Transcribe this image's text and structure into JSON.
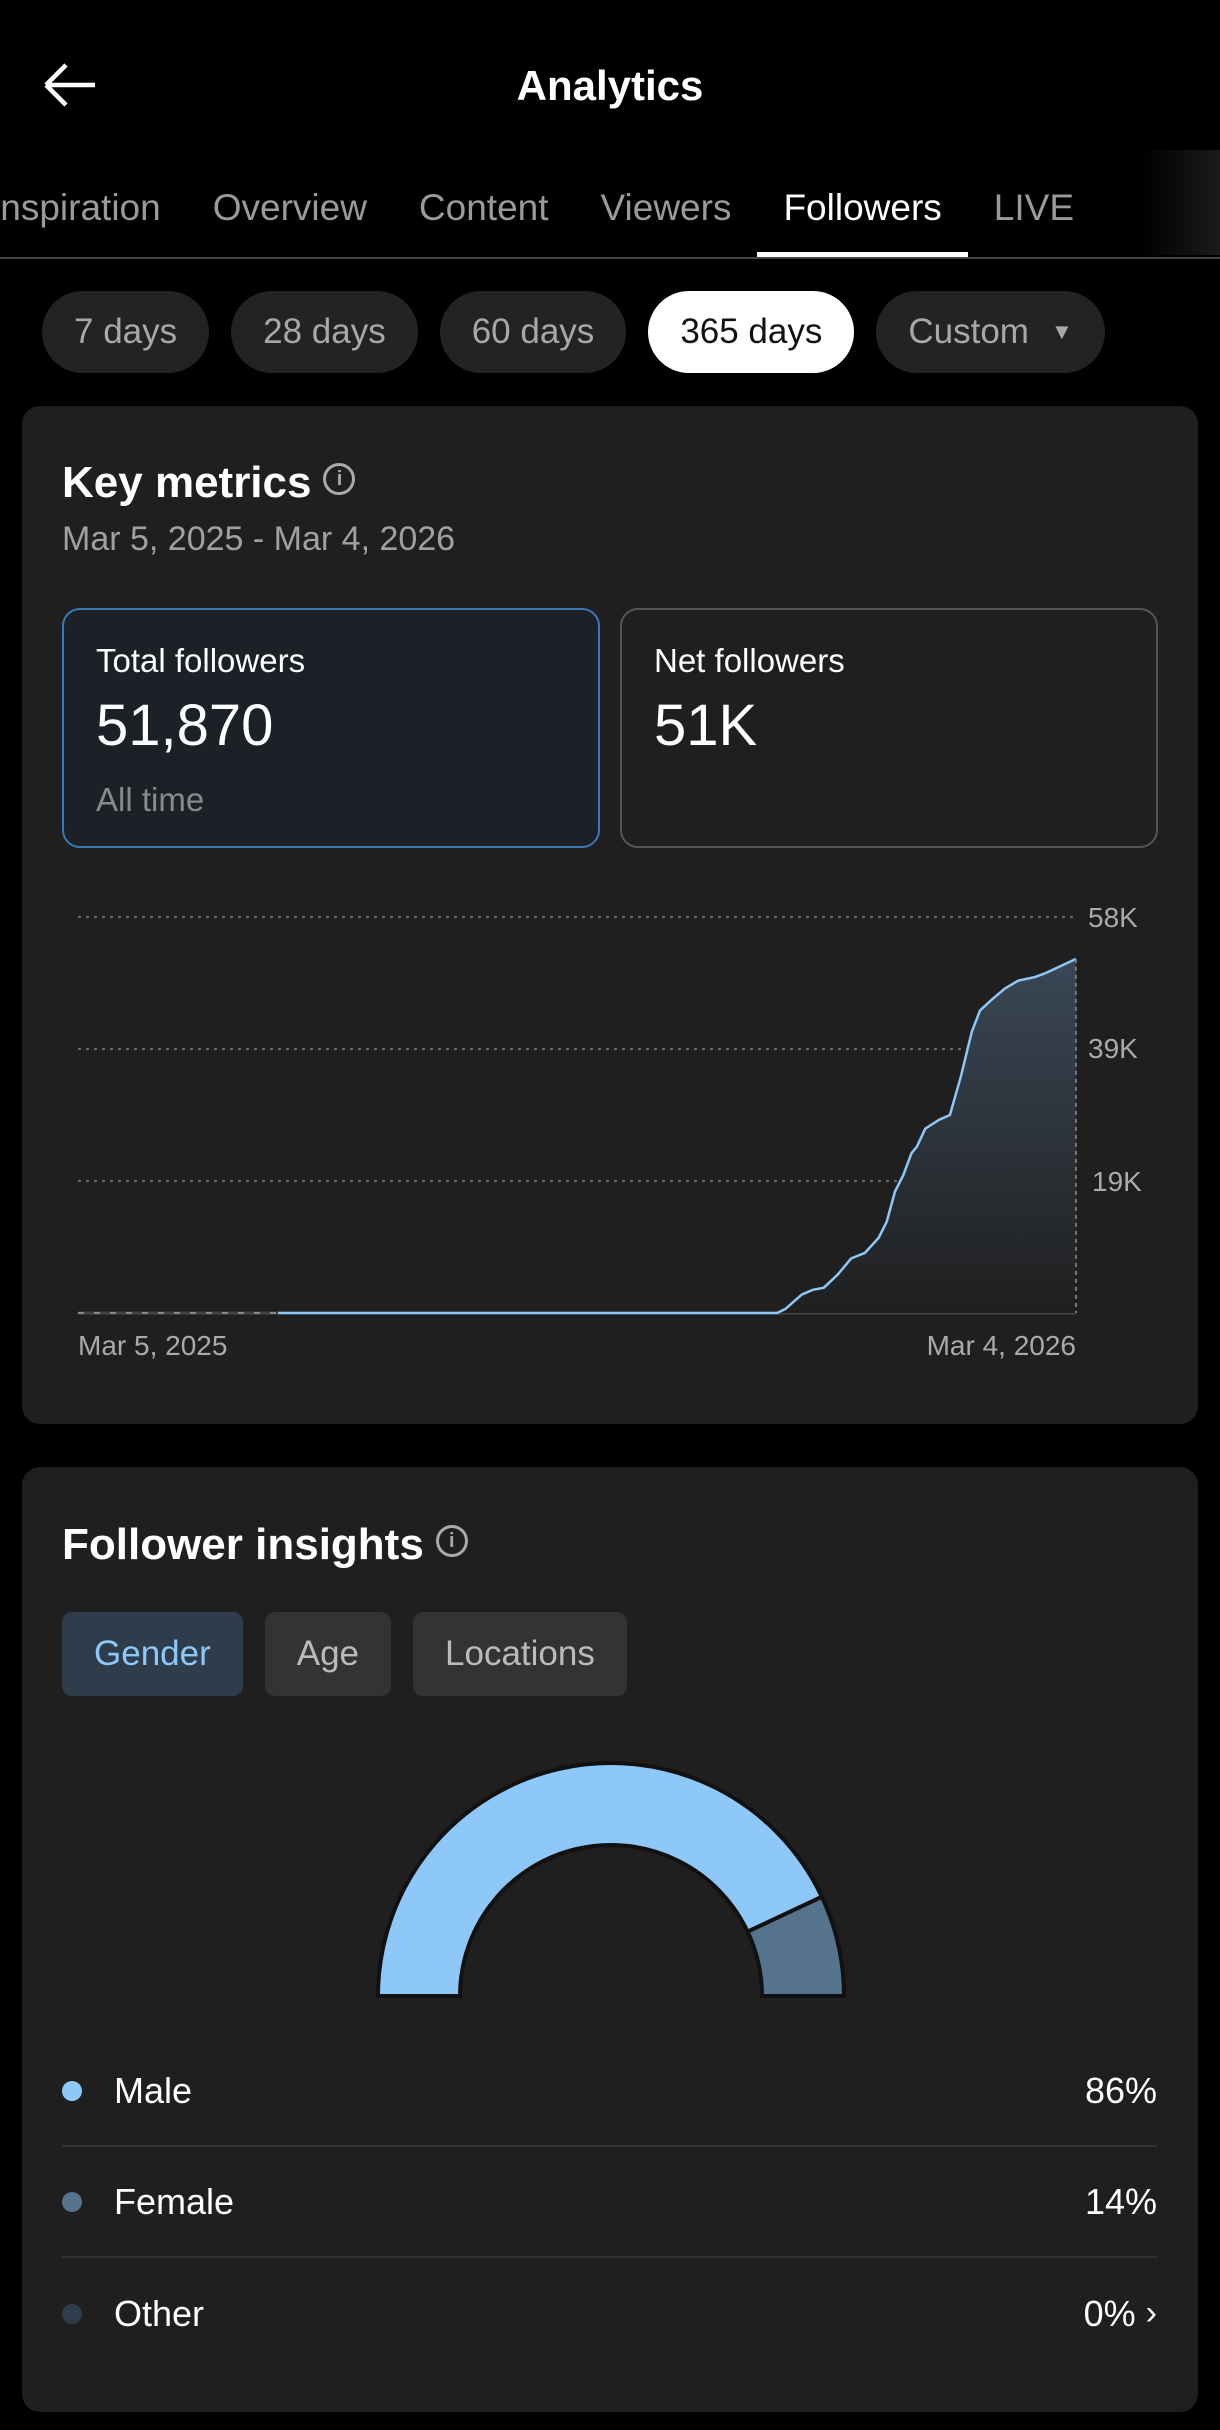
{
  "header": {
    "title": "Analytics",
    "back_icon": "arrow-left-icon"
  },
  "tabs": [
    {
      "label": "Inspiration"
    },
    {
      "label": "Overview"
    },
    {
      "label": "Content"
    },
    {
      "label": "Viewers"
    },
    {
      "label": "Followers",
      "active": true
    },
    {
      "label": "LIVE"
    }
  ],
  "ranges": [
    {
      "label": "7 days"
    },
    {
      "label": "28 days"
    },
    {
      "label": "60 days"
    },
    {
      "label": "365 days",
      "active": true
    },
    {
      "label": "Custom",
      "dropdown": true
    }
  ],
  "key_metrics": {
    "title": "Key metrics",
    "date_range": "Mar 5, 2025 - Mar 4, 2026",
    "total": {
      "label": "Total followers",
      "value": "51,870",
      "sub": "All time"
    },
    "net": {
      "label": "Net followers",
      "value": "51K"
    }
  },
  "chart_data": {
    "type": "area",
    "x_start": "2025-03-05",
    "x_end": "2026-03-04",
    "x_tick_labels": [
      "Mar 5, 2025",
      "Mar 4, 2026"
    ],
    "y_tick_labels": [
      "58K",
      "39K",
      "19K"
    ],
    "ylim": [
      0,
      58000
    ],
    "grid": true,
    "series": [
      {
        "color": "#8ec8f8",
        "points": [
          [
            "2025-05-17",
            0
          ],
          [
            "2025-11-15",
            0
          ],
          [
            "2025-11-18",
            600
          ],
          [
            "2025-11-24",
            2700
          ],
          [
            "2025-11-28",
            3400
          ],
          [
            "2025-12-02",
            3700
          ],
          [
            "2025-12-07",
            5600
          ],
          [
            "2025-12-12",
            8000
          ],
          [
            "2025-12-17",
            8800
          ],
          [
            "2025-12-22",
            11000
          ],
          [
            "2025-12-25",
            13400
          ],
          [
            "2025-12-28",
            17800
          ],
          [
            "2025-12-31",
            20200
          ],
          [
            "2026-01-03",
            23400
          ],
          [
            "2026-01-05",
            24400
          ],
          [
            "2026-01-08",
            27000
          ],
          [
            "2026-01-13",
            28300
          ],
          [
            "2026-01-17",
            29000
          ],
          [
            "2026-01-21",
            34600
          ],
          [
            "2026-01-25",
            41200
          ],
          [
            "2026-01-28",
            44300
          ],
          [
            "2026-02-01",
            45800
          ],
          [
            "2026-02-06",
            47500
          ],
          [
            "2026-02-11",
            48700
          ],
          [
            "2026-02-17",
            49200
          ],
          [
            "2026-02-21",
            49800
          ],
          [
            "2026-03-04",
            51870
          ]
        ]
      }
    ]
  },
  "insights": {
    "title": "Follower insights",
    "tabs": [
      {
        "label": "Gender",
        "active": true
      },
      {
        "label": "Age"
      },
      {
        "label": "Locations"
      }
    ],
    "gender": [
      {
        "label": "Male",
        "pct": "86%",
        "value": 86,
        "color": "#8ec8f8"
      },
      {
        "label": "Female",
        "pct": "14%",
        "value": 14,
        "color": "#56738e"
      },
      {
        "label": "Other",
        "pct": "0%",
        "value": 0,
        "color": "#2e3e4e",
        "chevron": true
      }
    ]
  }
}
